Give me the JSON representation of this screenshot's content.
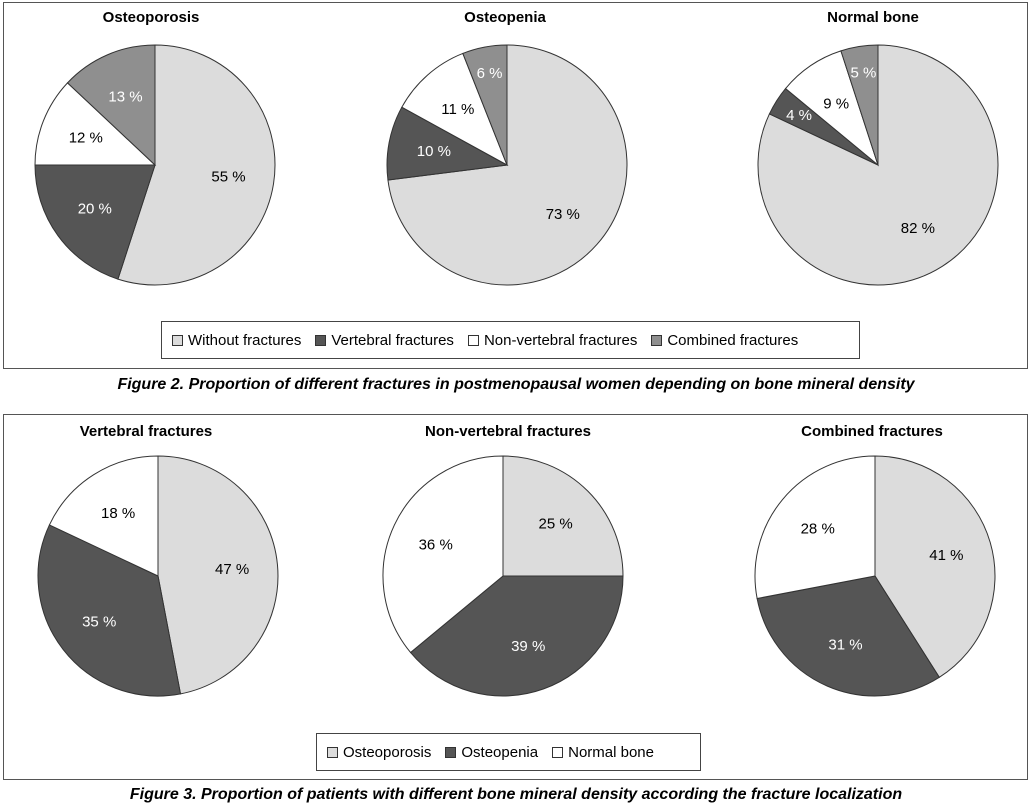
{
  "colors": {
    "light_gray": "#dcdcdc",
    "dark_gray": "#555555",
    "white": "#ffffff",
    "medium_gray": "#8f8f8f",
    "outline": "#333333"
  },
  "figure2": {
    "caption": "Figure 2. Proportion of different fractures in postmenopausal women depending on bone mineral density",
    "legend": [
      {
        "label": "Without fractures",
        "color": "#dcdcdc"
      },
      {
        "label": "Vertebral fractures",
        "color": "#555555"
      },
      {
        "label": "Non-vertebral fractures",
        "color": "#ffffff"
      },
      {
        "label": "Combined fractures",
        "color": "#8f8f8f"
      }
    ]
  },
  "figure3": {
    "caption": "Figure 3. Proportion of patients with different bone mineral density according the fracture localization",
    "legend": [
      {
        "label": "Osteoporosis",
        "color": "#dcdcdc"
      },
      {
        "label": "Osteopenia",
        "color": "#555555"
      },
      {
        "label": "Normal bone",
        "color": "#ffffff"
      }
    ]
  },
  "chart_data": [
    {
      "type": "pie",
      "title": "Osteoporosis",
      "slices": [
        {
          "name": "Without fractures",
          "value": 55,
          "label": "55 %",
          "color": "#dcdcdc"
        },
        {
          "name": "Vertebral fractures",
          "value": 20,
          "label": "20 %",
          "color": "#555555"
        },
        {
          "name": "Non-vertebral fractures",
          "value": 12,
          "label": "12 %",
          "color": "#ffffff"
        },
        {
          "name": "Combined fractures",
          "value": 13,
          "label": "13 %",
          "color": "#8f8f8f"
        }
      ]
    },
    {
      "type": "pie",
      "title": "Osteopenia",
      "slices": [
        {
          "name": "Without fractures",
          "value": 73,
          "label": "73 %",
          "color": "#dcdcdc"
        },
        {
          "name": "Vertebral fractures",
          "value": 10,
          "label": "10 %",
          "color": "#555555"
        },
        {
          "name": "Non-vertebral fractures",
          "value": 11,
          "label": "11 %",
          "color": "#ffffff"
        },
        {
          "name": "Combined fractures",
          "value": 6,
          "label": "6 %",
          "color": "#8f8f8f"
        }
      ]
    },
    {
      "type": "pie",
      "title": "Normal bone",
      "slices": [
        {
          "name": "Without fractures",
          "value": 82,
          "label": "82 %",
          "color": "#dcdcdc"
        },
        {
          "name": "Vertebral fractures",
          "value": 4,
          "label": "4 %",
          "color": "#555555"
        },
        {
          "name": "Non-vertebral fractures",
          "value": 9,
          "label": "9 %",
          "color": "#ffffff"
        },
        {
          "name": "Combined fractures",
          "value": 5,
          "label": "5 %",
          "color": "#8f8f8f"
        }
      ]
    },
    {
      "type": "pie",
      "title": "Vertebral fractures",
      "slices": [
        {
          "name": "Osteoporosis",
          "value": 47,
          "label": "47 %",
          "color": "#dcdcdc"
        },
        {
          "name": "Osteopenia",
          "value": 35,
          "label": "35 %",
          "color": "#555555"
        },
        {
          "name": "Normal bone",
          "value": 18,
          "label": "18 %",
          "color": "#ffffff"
        }
      ]
    },
    {
      "type": "pie",
      "title": "Non-vertebral fractures",
      "slices": [
        {
          "name": "Osteoporosis",
          "value": 25,
          "label": "25 %",
          "color": "#dcdcdc"
        },
        {
          "name": "Osteopenia",
          "value": 39,
          "label": "39 %",
          "color": "#555555"
        },
        {
          "name": "Normal bone",
          "value": 36,
          "label": "36 %",
          "color": "#ffffff"
        }
      ]
    },
    {
      "type": "pie",
      "title": "Combined fractures",
      "slices": [
        {
          "name": "Osteoporosis",
          "value": 41,
          "label": "41 %",
          "color": "#dcdcdc"
        },
        {
          "name": "Osteopenia",
          "value": 31,
          "label": "31 %",
          "color": "#555555"
        },
        {
          "name": "Normal bone",
          "value": 28,
          "label": "28 %",
          "color": "#ffffff"
        }
      ]
    }
  ]
}
